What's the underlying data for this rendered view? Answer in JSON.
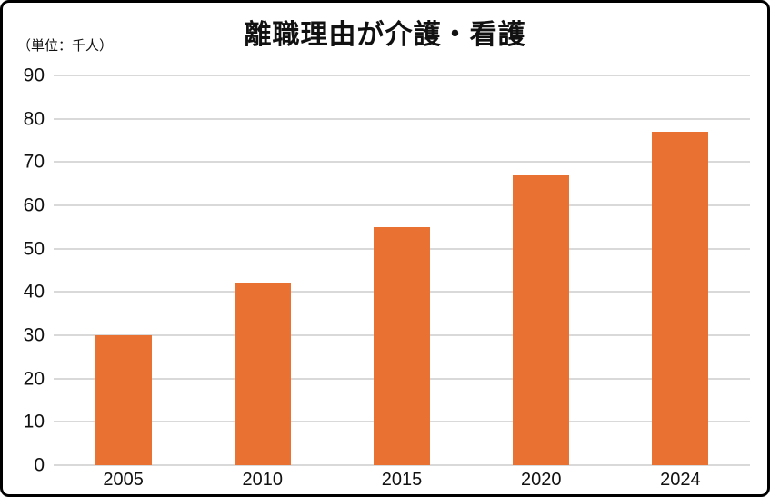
{
  "title": "離職理由が介護・看護",
  "unit_label": "（単位：千人）",
  "chart_data": {
    "type": "bar",
    "title": "離職理由が介護・看護",
    "ylabel": "（単位：千人）",
    "xlabel": "",
    "categories": [
      "2005",
      "2010",
      "2015",
      "2020",
      "2024"
    ],
    "values": [
      30,
      42,
      55,
      67,
      77
    ],
    "ylim": [
      0,
      90
    ],
    "yticks": [
      0,
      10,
      20,
      30,
      40,
      50,
      60,
      70,
      80,
      90
    ],
    "grid": true,
    "legend": false,
    "colors": {
      "bar": "#E97132",
      "gridline": "#D9D9D9",
      "text": "#111111",
      "border": "#000000",
      "background": "#FFFFFF"
    }
  }
}
